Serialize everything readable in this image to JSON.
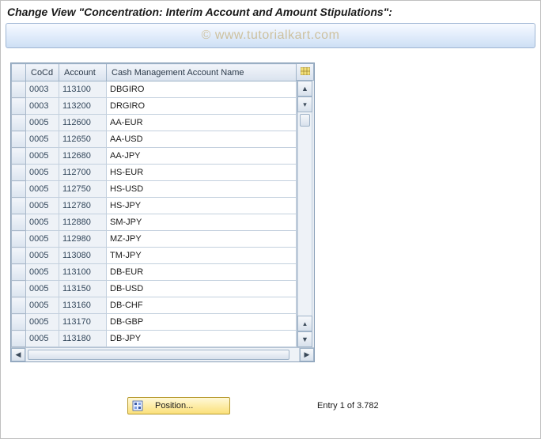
{
  "header": {
    "title": "Change View \"Concentration: Interim Account and Amount Stipulations\":",
    "watermark": "© www.tutorialkart.com"
  },
  "table": {
    "columns": {
      "cocd": "CoCd",
      "account": "Account",
      "name": "Cash Management Account Name"
    },
    "col_widths": {
      "sel": 18,
      "cocd": 42,
      "account": 60,
      "name": 240
    },
    "rows": [
      {
        "cocd": "0003",
        "account": "113100",
        "name": "DBGIRO"
      },
      {
        "cocd": "0003",
        "account": "113200",
        "name": "DRGIRO"
      },
      {
        "cocd": "0005",
        "account": "112600",
        "name": "AA-EUR"
      },
      {
        "cocd": "0005",
        "account": "112650",
        "name": "AA-USD"
      },
      {
        "cocd": "0005",
        "account": "112680",
        "name": "AA-JPY"
      },
      {
        "cocd": "0005",
        "account": "112700",
        "name": "HS-EUR"
      },
      {
        "cocd": "0005",
        "account": "112750",
        "name": "HS-USD"
      },
      {
        "cocd": "0005",
        "account": "112780",
        "name": "HS-JPY"
      },
      {
        "cocd": "0005",
        "account": "112880",
        "name": "SM-JPY"
      },
      {
        "cocd": "0005",
        "account": "112980",
        "name": "MZ-JPY"
      },
      {
        "cocd": "0005",
        "account": "113080",
        "name": "TM-JPY"
      },
      {
        "cocd": "0005",
        "account": "113100",
        "name": "DB-EUR"
      },
      {
        "cocd": "0005",
        "account": "113150",
        "name": "DB-USD"
      },
      {
        "cocd": "0005",
        "account": "113160",
        "name": "DB-CHF"
      },
      {
        "cocd": "0005",
        "account": "113170",
        "name": "DB-GBP"
      },
      {
        "cocd": "0005",
        "account": "113180",
        "name": "DB-JPY"
      }
    ]
  },
  "footer": {
    "position_label": "Position...",
    "entry_text": "Entry 1 of 3.782"
  },
  "colors": {
    "header_grad_top": "#f7faff",
    "header_grad_bot": "#cddff4",
    "border": "#9fb6d4",
    "table_header_top": "#f2f5fa",
    "table_header_bot": "#d9e2ee",
    "cell_border": "#c3d0de",
    "readonly_bg": "#eef2f7",
    "button_grad_top": "#fff9d8",
    "button_grad_bot": "#fbe07a",
    "button_border": "#b89b30"
  }
}
